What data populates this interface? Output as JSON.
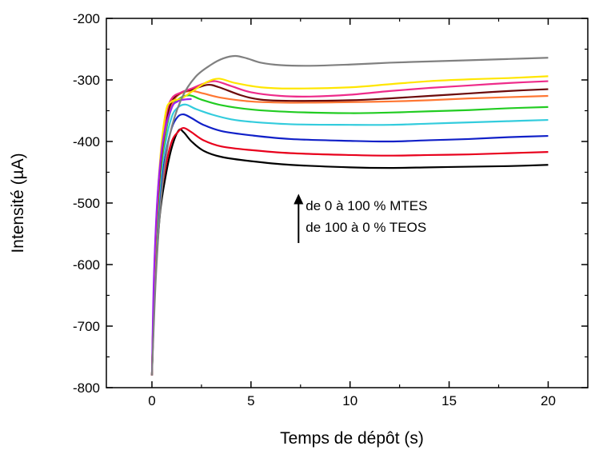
{
  "chart_data": {
    "type": "line",
    "title": "",
    "xlabel": "Temps de dépôt (s)",
    "ylabel": "Intensité (µA)",
    "xlim": [
      -2.3,
      22.0
    ],
    "ylim": [
      -800,
      -200
    ],
    "xticks": [
      0,
      5,
      10,
      15,
      20
    ],
    "xtick_labels": [
      "0",
      "5",
      "10",
      "15",
      "20"
    ],
    "yticks": [
      -800,
      -700,
      -600,
      -500,
      -400,
      -300,
      -200
    ],
    "ytick_labels": [
      "-800",
      "-700",
      "-600",
      "-500",
      "-400",
      "-300",
      "-200"
    ],
    "grid": false,
    "legend": null,
    "annotation": {
      "line1": "de 0 à 100 % MTES",
      "line2": "de 100 à 0 % TEOS",
      "arrow_direction": "up",
      "arrow_x": 7.4,
      "arrow_y_from": -565,
      "arrow_y_to": -485
    },
    "series": [
      {
        "color": "#000000",
        "points": [
          [
            0.0,
            -780
          ],
          [
            0.15,
            -640
          ],
          [
            0.4,
            -520
          ],
          [
            0.7,
            -455
          ],
          [
            1.0,
            -410
          ],
          [
            1.35,
            -382
          ],
          [
            1.6,
            -385
          ],
          [
            2.0,
            -400
          ],
          [
            2.6,
            -415
          ],
          [
            3.5,
            -425
          ],
          [
            5,
            -432
          ],
          [
            7,
            -438
          ],
          [
            10,
            -442
          ],
          [
            12,
            -443
          ],
          [
            14,
            -442
          ],
          [
            16,
            -441
          ],
          [
            18,
            -440
          ],
          [
            20,
            -438
          ]
        ]
      },
      {
        "color": "#e8001c",
        "points": [
          [
            0.0,
            -780
          ],
          [
            0.15,
            -630
          ],
          [
            0.4,
            -505
          ],
          [
            0.7,
            -440
          ],
          [
            1.0,
            -400
          ],
          [
            1.3,
            -385
          ],
          [
            1.6,
            -378
          ],
          [
            2.0,
            -385
          ],
          [
            2.6,
            -398
          ],
          [
            3.5,
            -408
          ],
          [
            5,
            -414
          ],
          [
            7,
            -419
          ],
          [
            10,
            -422
          ],
          [
            12,
            -423
          ],
          [
            14,
            -422
          ],
          [
            16,
            -421
          ],
          [
            18,
            -419
          ],
          [
            20,
            -417
          ]
        ]
      },
      {
        "color": "#1020c8",
        "points": [
          [
            0.0,
            -780
          ],
          [
            0.15,
            -620
          ],
          [
            0.4,
            -490
          ],
          [
            0.7,
            -420
          ],
          [
            1.0,
            -378
          ],
          [
            1.3,
            -360
          ],
          [
            1.6,
            -356
          ],
          [
            2.0,
            -362
          ],
          [
            2.6,
            -373
          ],
          [
            3.5,
            -383
          ],
          [
            5,
            -390
          ],
          [
            7,
            -396
          ],
          [
            10,
            -399
          ],
          [
            12,
            -400
          ],
          [
            14,
            -398
          ],
          [
            16,
            -396
          ],
          [
            18,
            -393
          ],
          [
            20,
            -391
          ]
        ]
      },
      {
        "color": "#33ccdd",
        "points": [
          [
            0.0,
            -780
          ],
          [
            0.15,
            -610
          ],
          [
            0.4,
            -475
          ],
          [
            0.7,
            -400
          ],
          [
            1.0,
            -360
          ],
          [
            1.3,
            -345
          ],
          [
            1.7,
            -340
          ],
          [
            2.2,
            -347
          ],
          [
            3.0,
            -356
          ],
          [
            4,
            -364
          ],
          [
            5,
            -368
          ],
          [
            7,
            -372
          ],
          [
            10,
            -373
          ],
          [
            12,
            -373
          ],
          [
            14,
            -371
          ],
          [
            16,
            -369
          ],
          [
            18,
            -367
          ],
          [
            20,
            -365
          ]
        ]
      },
      {
        "color": "#22cc22",
        "points": [
          [
            0.0,
            -780
          ],
          [
            0.15,
            -600
          ],
          [
            0.4,
            -460
          ],
          [
            0.7,
            -385
          ],
          [
            1.0,
            -345
          ],
          [
            1.4,
            -330
          ],
          [
            1.9,
            -325
          ],
          [
            2.5,
            -332
          ],
          [
            3.5,
            -341
          ],
          [
            5,
            -348
          ],
          [
            7,
            -352
          ],
          [
            10,
            -354
          ],
          [
            12,
            -353
          ],
          [
            14,
            -351
          ],
          [
            16,
            -349
          ],
          [
            18,
            -346
          ],
          [
            20,
            -344
          ]
        ]
      },
      {
        "color": "#ff7733",
        "points": [
          [
            0.0,
            -780
          ],
          [
            0.15,
            -595
          ],
          [
            0.4,
            -455
          ],
          [
            0.7,
            -378
          ],
          [
            1.0,
            -340
          ],
          [
            1.4,
            -323
          ],
          [
            2.0,
            -318
          ],
          [
            2.6,
            -322
          ],
          [
            3.5,
            -329
          ],
          [
            5,
            -335
          ],
          [
            7,
            -337
          ],
          [
            10,
            -336
          ],
          [
            12,
            -335
          ],
          [
            14,
            -333
          ],
          [
            16,
            -330
          ],
          [
            18,
            -328
          ],
          [
            20,
            -326
          ]
        ]
      },
      {
        "color": "#6b0a0a",
        "points": [
          [
            0.0,
            -780
          ],
          [
            0.15,
            -590
          ],
          [
            0.4,
            -450
          ],
          [
            0.7,
            -372
          ],
          [
            1.0,
            -335
          ],
          [
            1.5,
            -320
          ],
          [
            2.0,
            -316
          ],
          [
            2.8,
            -308
          ],
          [
            3.4,
            -312
          ],
          [
            4.5,
            -325
          ],
          [
            5.5,
            -332
          ],
          [
            7,
            -334
          ],
          [
            10,
            -333
          ],
          [
            12,
            -330
          ],
          [
            14,
            -326
          ],
          [
            16,
            -322
          ],
          [
            18,
            -318
          ],
          [
            20,
            -315
          ]
        ]
      },
      {
        "color": "#ee2b8a",
        "points": [
          [
            0.0,
            -780
          ],
          [
            0.15,
            -585
          ],
          [
            0.4,
            -440
          ],
          [
            0.7,
            -360
          ],
          [
            1.0,
            -330
          ],
          [
            1.5,
            -320
          ],
          [
            2.0,
            -314
          ],
          [
            2.6,
            -306
          ],
          [
            3.2,
            -302
          ],
          [
            4,
            -310
          ],
          [
            5,
            -320
          ],
          [
            6.5,
            -326
          ],
          [
            8,
            -327
          ],
          [
            10,
            -324
          ],
          [
            12,
            -318
          ],
          [
            14,
            -313
          ],
          [
            16,
            -309
          ],
          [
            18,
            -305
          ],
          [
            20,
            -302
          ]
        ]
      },
      {
        "color": "#ffe600",
        "points": [
          [
            0.0,
            -780
          ],
          [
            0.15,
            -580
          ],
          [
            0.4,
            -435
          ],
          [
            0.7,
            -352
          ],
          [
            1.0,
            -335
          ],
          [
            1.5,
            -330
          ],
          [
            2.2,
            -315
          ],
          [
            2.8,
            -303
          ],
          [
            3.4,
            -298
          ],
          [
            4.2,
            -305
          ],
          [
            5.5,
            -312
          ],
          [
            7,
            -314
          ],
          [
            10,
            -312
          ],
          [
            12,
            -307
          ],
          [
            14,
            -302
          ],
          [
            16,
            -299
          ],
          [
            18,
            -297
          ],
          [
            20,
            -294
          ]
        ]
      },
      {
        "color": "#a020f0",
        "points": [
          [
            0.0,
            -780
          ],
          [
            0.1,
            -620
          ],
          [
            0.3,
            -480
          ],
          [
            0.6,
            -390
          ],
          [
            1.0,
            -345
          ],
          [
            1.3,
            -335
          ],
          [
            1.6,
            -332
          ],
          [
            2.0,
            -331
          ]
        ]
      },
      {
        "color": "#808080",
        "points": [
          [
            0.0,
            -780
          ],
          [
            0.2,
            -620
          ],
          [
            0.5,
            -480
          ],
          [
            0.9,
            -390
          ],
          [
            1.5,
            -330
          ],
          [
            2.2,
            -295
          ],
          [
            3.0,
            -275
          ],
          [
            3.6,
            -265
          ],
          [
            4.2,
            -261
          ],
          [
            4.8,
            -265
          ],
          [
            5.5,
            -272
          ],
          [
            6.5,
            -276
          ],
          [
            8,
            -277
          ],
          [
            10,
            -275
          ],
          [
            12,
            -272
          ],
          [
            14,
            -270
          ],
          [
            16,
            -268
          ],
          [
            18,
            -266
          ],
          [
            20,
            -264
          ]
        ]
      }
    ]
  }
}
